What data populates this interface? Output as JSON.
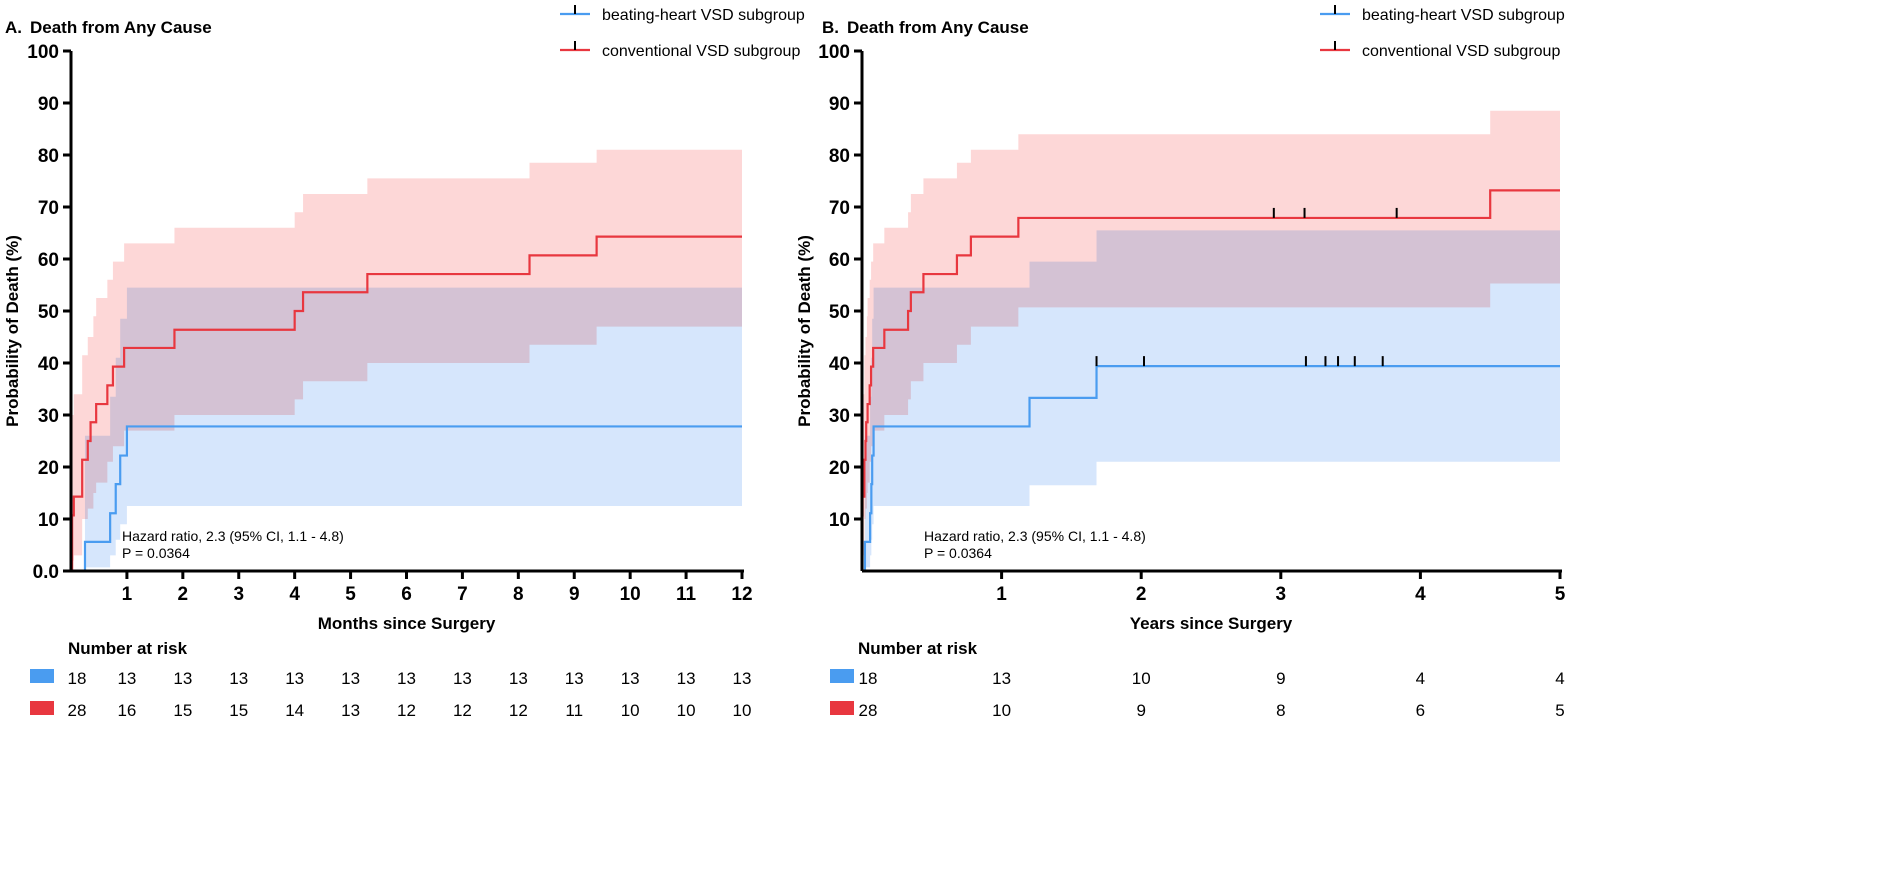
{
  "chart_data": [
    {
      "type": "line",
      "panel_label": "A.",
      "title": "Death from Any Cause",
      "xlabel": "Months since Surgery",
      "ylabel": "Probability of Death (%)",
      "xlim": [
        0,
        12
      ],
      "ylim": [
        0,
        100
      ],
      "xticks": [
        "1",
        "2",
        "3",
        "4",
        "5",
        "6",
        "7",
        "8",
        "9",
        "10",
        "11",
        "12"
      ],
      "xtick_values": [
        1,
        2,
        3,
        4,
        5,
        6,
        7,
        8,
        9,
        10,
        11,
        12
      ],
      "yticks": [
        "0.0",
        "10",
        "20",
        "30",
        "40",
        "50",
        "60",
        "70",
        "80",
        "90",
        "100"
      ],
      "annotation": [
        "Hazard ratio, 2.3 (95% CI, 1.1 - 4.8)",
        "P = 0.0364"
      ],
      "series": [
        {
          "name": "beating-heart VSD subgroup",
          "color": "#4a9cf0",
          "band_color": "#cfe2fb",
          "steps": [
            [
              0,
              0
            ],
            [
              0.25,
              5.6
            ],
            [
              0.7,
              11.1
            ],
            [
              0.8,
              16.7
            ],
            [
              0.88,
              22.2
            ],
            [
              1.0,
              27.8
            ],
            [
              12,
              27.8
            ]
          ],
          "ci": [
            [
              0.25,
              0.7,
              26
            ],
            [
              0.7,
              3,
              33.5
            ],
            [
              0.8,
              6,
              41
            ],
            [
              0.88,
              9,
              48.5
            ],
            [
              1.0,
              12.5,
              54.5
            ],
            [
              12,
              12.5,
              54.5
            ]
          ],
          "censored": []
        },
        {
          "name": "conventional VSD subgroup",
          "color": "#e8373f",
          "band_color": "#fcc9c9",
          "steps": [
            [
              0,
              0
            ],
            [
              0.02,
              10.7
            ],
            [
              0.05,
              14.3
            ],
            [
              0.2,
              21.4
            ],
            [
              0.3,
              25
            ],
            [
              0.35,
              28.6
            ],
            [
              0.45,
              32.1
            ],
            [
              0.65,
              35.7
            ],
            [
              0.75,
              39.3
            ],
            [
              0.95,
              42.9
            ],
            [
              1.85,
              46.4
            ],
            [
              4.0,
              50
            ],
            [
              4.15,
              53.6
            ],
            [
              5.3,
              57.1
            ],
            [
              8.2,
              60.7
            ],
            [
              9.4,
              64.3
            ],
            [
              12,
              64.3
            ]
          ],
          "ci": [
            [
              0.02,
              2,
              30
            ],
            [
              0.05,
              3,
              34
            ],
            [
              0.2,
              10,
              41.5
            ],
            [
              0.3,
              12,
              45
            ],
            [
              0.4,
              15,
              49
            ],
            [
              0.45,
              17,
              52.5
            ],
            [
              0.65,
              21,
              56
            ],
            [
              0.75,
              24,
              59.5
            ],
            [
              0.95,
              27,
              63
            ],
            [
              1.85,
              30,
              66
            ],
            [
              4.0,
              33,
              69
            ],
            [
              4.15,
              36.5,
              72.5
            ],
            [
              5.3,
              40,
              75.5
            ],
            [
              8.2,
              43.5,
              78.5
            ],
            [
              9.4,
              47,
              81
            ],
            [
              12,
              47,
              81
            ]
          ],
          "censored": []
        }
      ],
      "risk_table": {
        "title": "Number at risk",
        "x": [
          0,
          1,
          2,
          3,
          4,
          5,
          6,
          7,
          8,
          9,
          10,
          11,
          12
        ],
        "rows": [
          {
            "color": "#4a9cf0",
            "values": [
              "18",
              "13",
              "13",
              "13",
              "13",
              "13",
              "13",
              "13",
              "13",
              "13",
              "13",
              "13",
              "13"
            ]
          },
          {
            "color": "#e8373f",
            "values": [
              "28",
              "16",
              "15",
              "15",
              "14",
              "13",
              "12",
              "12",
              "12",
              "11",
              "10",
              "10",
              "10"
            ]
          }
        ]
      }
    },
    {
      "type": "line",
      "panel_label": "B.",
      "title": "Death from Any Cause",
      "xlabel": "Years since Surgery",
      "ylabel": "Probability of Death (%)",
      "xlim": [
        0,
        5
      ],
      "ylim": [
        0,
        100
      ],
      "xticks": [
        "1",
        "2",
        "3",
        "4",
        "5"
      ],
      "xtick_values": [
        1,
        2,
        3,
        4,
        5
      ],
      "yticks": [
        "10",
        "20",
        "30",
        "40",
        "50",
        "60",
        "70",
        "80",
        "90",
        "100"
      ],
      "annotation": [
        "Hazard ratio, 2.3 (95% CI, 1.1 - 4.8)",
        "P = 0.0364"
      ],
      "series": [
        {
          "name": "beating-heart VSD subgroup",
          "color": "#4a9cf0",
          "band_color": "#cfe2fb",
          "steps": [
            [
              0,
              0
            ],
            [
              0.021,
              5.6
            ],
            [
              0.058,
              11.1
            ],
            [
              0.067,
              16.7
            ],
            [
              0.073,
              22.2
            ],
            [
              0.083,
              27.8
            ],
            [
              1.2,
              33.3
            ],
            [
              1.68,
              39.4
            ],
            [
              5,
              39.4
            ]
          ],
          "ci": [
            [
              0.021,
              0.7,
              26
            ],
            [
              0.058,
              3,
              33.5
            ],
            [
              0.067,
              6,
              41
            ],
            [
              0.073,
              9,
              48.5
            ],
            [
              0.083,
              12.5,
              54.5
            ],
            [
              1.2,
              16.5,
              59.5
            ],
            [
              1.68,
              21,
              65.5
            ],
            [
              5,
              21,
              65.5
            ]
          ],
          "censored": [
            1.68,
            2.02,
            3.18,
            3.32,
            3.41,
            3.53,
            3.73
          ]
        },
        {
          "name": "conventional VSD subgroup",
          "color": "#e8373f",
          "band_color": "#fcc9c9",
          "steps": [
            [
              0,
              0
            ],
            [
              0.002,
              10.7
            ],
            [
              0.004,
              14.3
            ],
            [
              0.017,
              21.4
            ],
            [
              0.025,
              25
            ],
            [
              0.03,
              28.6
            ],
            [
              0.04,
              32.1
            ],
            [
              0.055,
              35.7
            ],
            [
              0.065,
              39.3
            ],
            [
              0.08,
              42.9
            ],
            [
              0.16,
              46.4
            ],
            [
              0.33,
              50
            ],
            [
              0.35,
              53.6
            ],
            [
              0.44,
              57.1
            ],
            [
              0.68,
              60.7
            ],
            [
              0.78,
              64.3
            ],
            [
              1.12,
              67.9
            ],
            [
              4.5,
              73.2
            ],
            [
              5,
              73.2
            ]
          ],
          "ci": [
            [
              0.002,
              2,
              30
            ],
            [
              0.004,
              3,
              34
            ],
            [
              0.017,
              10,
              41.5
            ],
            [
              0.025,
              12,
              45
            ],
            [
              0.035,
              15,
              49
            ],
            [
              0.04,
              17,
              52.5
            ],
            [
              0.055,
              21,
              56
            ],
            [
              0.065,
              24,
              59.5
            ],
            [
              0.08,
              27,
              63
            ],
            [
              0.16,
              30,
              66
            ],
            [
              0.33,
              33,
              69
            ],
            [
              0.35,
              36.5,
              72.5
            ],
            [
              0.44,
              40,
              75.5
            ],
            [
              0.68,
              43.5,
              78.5
            ],
            [
              0.78,
              47,
              81
            ],
            [
              1.12,
              50.7,
              84
            ],
            [
              4.5,
              55.3,
              88.5
            ],
            [
              5,
              55.3,
              88.5
            ]
          ],
          "censored": [
            2.95,
            3.17,
            3.83
          ]
        }
      ],
      "risk_table": {
        "title": "Number at risk",
        "x": [
          0,
          1,
          2,
          3,
          4,
          5
        ],
        "rows": [
          {
            "color": "#4a9cf0",
            "values": [
              "18",
              "13",
              "10",
              "9",
              "4",
              "4"
            ]
          },
          {
            "color": "#e8373f",
            "values": [
              "28",
              "10",
              "9",
              "8",
              "6",
              "5"
            ]
          }
        ]
      }
    }
  ]
}
